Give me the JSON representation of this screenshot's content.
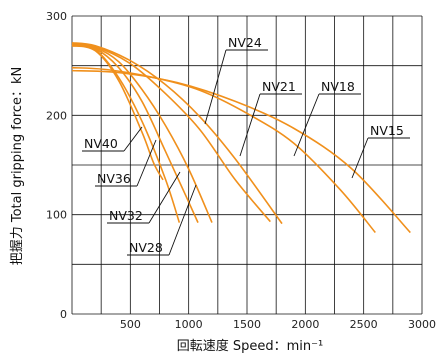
{
  "chart_data": {
    "type": "line",
    "xlabel": "回転速度 Speed：min⁻¹",
    "ylabel": "把握力 Total gripping force：kN",
    "xlim": [
      0,
      3000
    ],
    "ylim": [
      0,
      300
    ],
    "x_ticks": [
      "500",
      "1000",
      "1500",
      "2000",
      "2500",
      "3000"
    ],
    "y_ticks": [
      "0",
      "100",
      "200",
      "300"
    ],
    "grid": true,
    "legend": "direct labels with leader lines",
    "line_color": "#f0901c",
    "series": [
      {
        "name": "NV40",
        "x": [
          0,
          200,
          400,
          600,
          700,
          780
        ],
        "y": [
          270,
          265,
          235,
          183,
          152,
          135
        ]
      },
      {
        "name": "NV36",
        "x": [
          0,
          200,
          400,
          600,
          800,
          920
        ],
        "y": [
          271,
          266,
          238,
          194,
          136,
          92
        ]
      },
      {
        "name": "NV32",
        "x": [
          0,
          200,
          400,
          600,
          800,
          980,
          1080
        ],
        "y": [
          271,
          267,
          248,
          214,
          164,
          118,
          92
        ]
      },
      {
        "name": "NV28",
        "x": [
          0,
          200,
          400,
          600,
          800,
          1000,
          1200
        ],
        "y": [
          271,
          268,
          254,
          226,
          190,
          146,
          92
        ]
      },
      {
        "name": "NV24",
        "x": [
          0,
          200,
          500,
          800,
          1100,
          1400,
          1700
        ],
        "y": [
          272,
          269,
          252,
          222,
          185,
          135,
          93
        ]
      },
      {
        "name": "NV21",
        "x": [
          0,
          200,
          500,
          800,
          1100,
          1400,
          1800
        ],
        "y": [
          273,
          270,
          255,
          231,
          198,
          156,
          91
        ]
      },
      {
        "name": "NV18",
        "x": [
          0,
          300,
          700,
          1100,
          1500,
          1900,
          2300,
          2600
        ],
        "y": [
          248,
          246,
          238,
          225,
          202,
          172,
          125,
          82
        ]
      },
      {
        "name": "NV15",
        "x": [
          0,
          400,
          900,
          1400,
          1900,
          2400,
          2900
        ],
        "y": [
          245,
          243,
          233,
          214,
          187,
          146,
          82
        ]
      }
    ],
    "labels": [
      {
        "text": "NV40",
        "series": "NV40"
      },
      {
        "text": "NV36",
        "series": "NV36"
      },
      {
        "text": "NV32",
        "series": "NV32"
      },
      {
        "text": "NV28",
        "series": "NV28"
      },
      {
        "text": "NV24",
        "series": "NV24"
      },
      {
        "text": "NV21",
        "series": "NV21"
      },
      {
        "text": "NV18",
        "series": "NV18"
      },
      {
        "text": "NV15",
        "series": "NV15"
      }
    ]
  }
}
